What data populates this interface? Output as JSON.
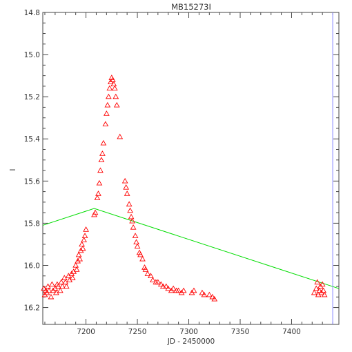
{
  "chart_data": {
    "type": "scatter",
    "title": "MB15273I",
    "xlabel": "JD - 2450000",
    "ylabel": "I",
    "xlim": [
      7158,
      7446
    ],
    "ylim": [
      16.28,
      14.8
    ],
    "y_inverted": true,
    "grid": false,
    "x_ticks": [
      "7200",
      "7250",
      "7300",
      "7350",
      "7400"
    ],
    "x_tick_values": [
      7200,
      7250,
      7300,
      7350,
      7400
    ],
    "y_ticks": [
      "14.8",
      "15.0",
      "15.2",
      "15.4",
      "15.6",
      "15.8",
      "16.0",
      "16.2"
    ],
    "y_tick_values": [
      14.8,
      15.0,
      15.2,
      15.4,
      15.6,
      15.8,
      16.0,
      16.2
    ],
    "vertical_line": {
      "x": 7440,
      "color": "#8888ff"
    },
    "series": [
      {
        "marker": "triangle-open",
        "color": "#ff0000",
        "points": [
          [
            7159,
            16.11
          ],
          [
            7160,
            16.14
          ],
          [
            7161,
            16.12
          ],
          [
            7162,
            16.13
          ],
          [
            7163,
            16.1
          ],
          [
            7164,
            16.12
          ],
          [
            7166,
            16.15
          ],
          [
            7167,
            16.09
          ],
          [
            7168,
            16.12
          ],
          [
            7170,
            16.11
          ],
          [
            7171,
            16.13
          ],
          [
            7172,
            16.09
          ],
          [
            7173,
            16.1
          ],
          [
            7175,
            16.12
          ],
          [
            7176,
            16.08
          ],
          [
            7177,
            16.1
          ],
          [
            7179,
            16.06
          ],
          [
            7180,
            16.08
          ],
          [
            7181,
            16.1
          ],
          [
            7183,
            16.05
          ],
          [
            7184,
            16.07
          ],
          [
            7186,
            16.04
          ],
          [
            7187,
            16.06
          ],
          [
            7188,
            16.03
          ],
          [
            7190,
            16.0
          ],
          [
            7191,
            16.02
          ],
          [
            7192,
            15.98
          ],
          [
            7193,
            15.95
          ],
          [
            7194,
            15.97
          ],
          [
            7195,
            15.93
          ],
          [
            7196,
            15.9
          ],
          [
            7197,
            15.92
          ],
          [
            7198,
            15.88
          ],
          [
            7199,
            15.86
          ],
          [
            7200,
            15.83
          ],
          [
            7208,
            15.76
          ],
          [
            7209,
            15.75
          ],
          [
            7211,
            15.68
          ],
          [
            7212,
            15.66
          ],
          [
            7213,
            15.61
          ],
          [
            7214,
            15.55
          ],
          [
            7215,
            15.5
          ],
          [
            7216,
            15.47
          ],
          [
            7217,
            15.42
          ],
          [
            7219,
            15.33
          ],
          [
            7220,
            15.28
          ],
          [
            7221,
            15.24
          ],
          [
            7222,
            15.2
          ],
          [
            7223,
            15.16
          ],
          [
            7224,
            15.13
          ],
          [
            7225,
            15.11
          ],
          [
            7226,
            15.12
          ],
          [
            7227,
            15.14
          ],
          [
            7228,
            15.16
          ],
          [
            7229,
            15.2
          ],
          [
            7230,
            15.24
          ],
          [
            7233,
            15.39
          ],
          [
            7238,
            15.6
          ],
          [
            7239,
            15.63
          ],
          [
            7240,
            15.66
          ],
          [
            7242,
            15.71
          ],
          [
            7243,
            15.74
          ],
          [
            7244,
            15.77
          ],
          [
            7245,
            15.79
          ],
          [
            7246,
            15.82
          ],
          [
            7248,
            15.86
          ],
          [
            7249,
            15.89
          ],
          [
            7250,
            15.91
          ],
          [
            7252,
            15.94
          ],
          [
            7253,
            15.95
          ],
          [
            7255,
            15.97
          ],
          [
            7257,
            16.01
          ],
          [
            7258,
            16.02
          ],
          [
            7260,
            16.04
          ],
          [
            7263,
            16.05
          ],
          [
            7265,
            16.07
          ],
          [
            7268,
            16.08
          ],
          [
            7270,
            16.08
          ],
          [
            7273,
            16.09
          ],
          [
            7275,
            16.1
          ],
          [
            7278,
            16.1
          ],
          [
            7280,
            16.11
          ],
          [
            7283,
            16.12
          ],
          [
            7285,
            16.11
          ],
          [
            7288,
            16.12
          ],
          [
            7290,
            16.12
          ],
          [
            7293,
            16.13
          ],
          [
            7295,
            16.12
          ],
          [
            7303,
            16.13
          ],
          [
            7305,
            16.12
          ],
          [
            7313,
            16.13
          ],
          [
            7315,
            16.14
          ],
          [
            7320,
            16.14
          ],
          [
            7323,
            16.15
          ],
          [
            7325,
            16.16
          ],
          [
            7422,
            16.13
          ],
          [
            7424,
            16.11
          ],
          [
            7425,
            16.08
          ],
          [
            7426,
            16.14
          ],
          [
            7427,
            16.12
          ],
          [
            7428,
            16.1
          ],
          [
            7429,
            16.13
          ],
          [
            7430,
            16.09
          ],
          [
            7431,
            16.12
          ],
          [
            7432,
            16.14
          ]
        ]
      },
      {
        "marker": "line",
        "color": "#00dd00",
        "points": [
          [
            7158,
            15.81
          ],
          [
            7208,
            15.73
          ],
          [
            7446,
            16.11
          ]
        ]
      }
    ]
  }
}
